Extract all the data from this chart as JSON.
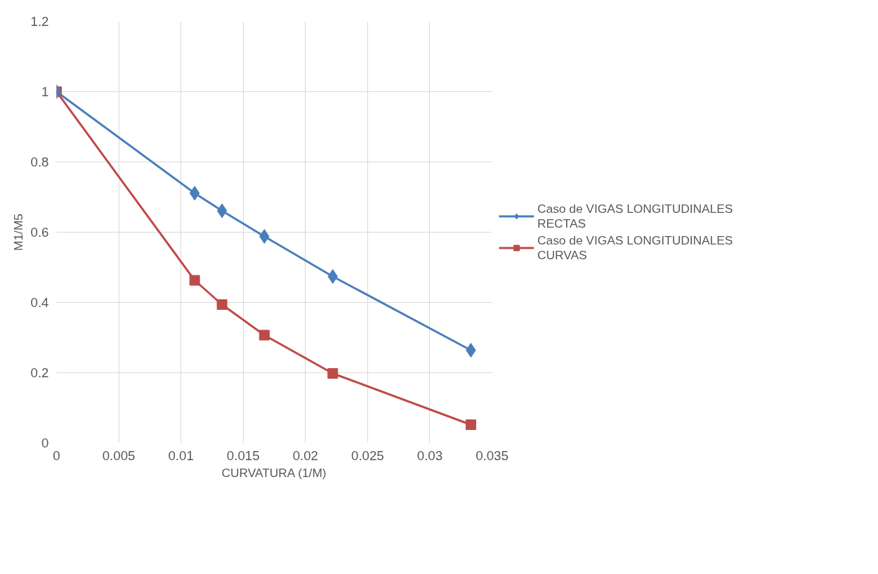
{
  "chart_data": {
    "type": "line",
    "xlabel": "CURVATURA (1/M)",
    "ylabel": "M1/M5",
    "xlim": [
      0,
      0.035
    ],
    "xticks": [
      0,
      0.005,
      0.01,
      0.015,
      0.02,
      0.025,
      0.03,
      0.035
    ],
    "ylim": [
      0,
      1.2
    ],
    "yticks": [
      0,
      0.2,
      0.4,
      0.6,
      0.8,
      1,
      1.2
    ],
    "grid": true,
    "legend": "right",
    "series": [
      {
        "name": "Caso de VIGAS LONGITUDINALES RECTAS",
        "color": "#4a7ebb",
        "marker": "diamond",
        "x": [
          0,
          0.0111,
          0.0133,
          0.0167,
          0.0222,
          0.0333
        ],
        "values": [
          1,
          0.711,
          0.661,
          0.588,
          0.474,
          0.264
        ]
      },
      {
        "name": "Caso de VIGAS LONGITUDINALES CURVAS",
        "color": "#be4b48",
        "marker": "square",
        "x": [
          0,
          0.0111,
          0.0133,
          0.0167,
          0.0222,
          0.0333
        ],
        "values": [
          1,
          0.463,
          0.394,
          0.307,
          0.198,
          0.052
        ]
      }
    ]
  }
}
